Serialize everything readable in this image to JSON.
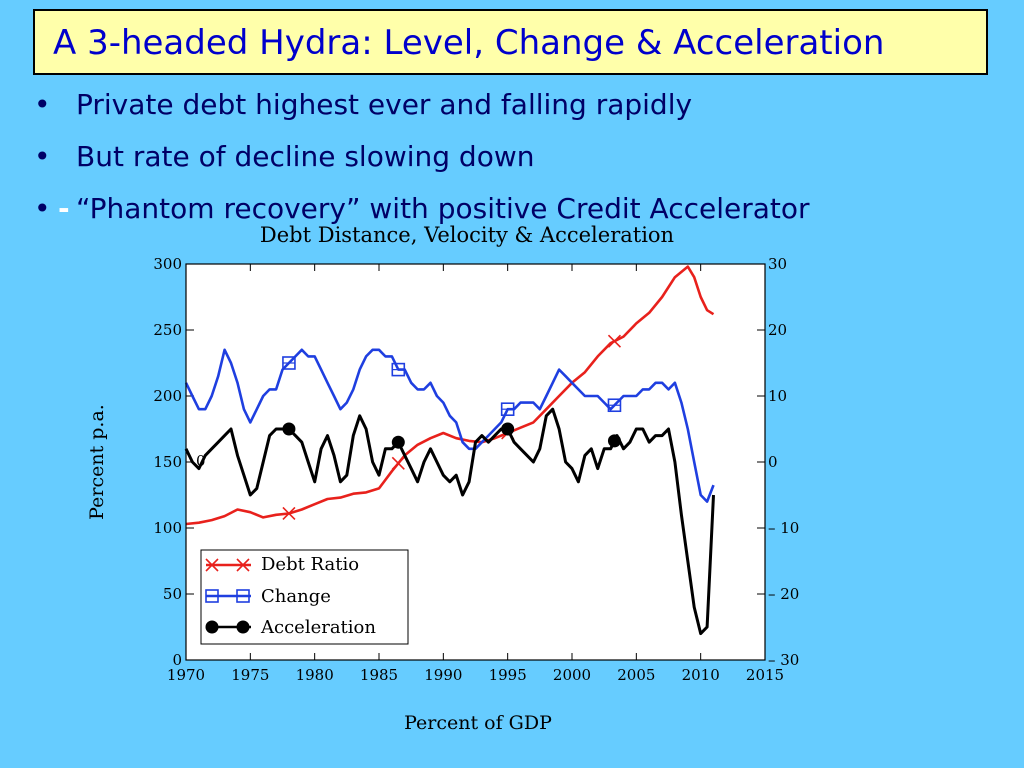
{
  "slide": {
    "title": "A 3-headed Hydra: Level, Change & Acceleration",
    "bullets": [
      "Private debt highest ever and falling rapidly",
      "But rate of decline slowing down",
      "“Phantom recovery” with positive Credit Accelerator"
    ],
    "bullet_marker": "•",
    "dash_marker": "-"
  },
  "colors": {
    "background": "#66ccff",
    "title_box": "#ffffaa",
    "title_text": "#0000cc",
    "debt_ratio": "#e8211c",
    "change": "#1f3fe0",
    "acceleration": "#000000"
  },
  "chart_data": {
    "type": "line",
    "title": "Debt Distance, Velocity & Acceleration",
    "xlabel": "Percent of GDP",
    "ylabel": "Percent p.a.",
    "xlim": [
      1970,
      2015
    ],
    "ylim_left": [
      0,
      300
    ],
    "ylim_right": [
      -30,
      30
    ],
    "x_ticks": [
      "1970",
      "1975",
      "1980",
      "1985",
      "1990",
      "1995",
      "2000",
      "2005",
      "2010",
      "2015"
    ],
    "y_left_ticks": [
      "0",
      "50",
      "100",
      "150",
      "200",
      "250",
      "300"
    ],
    "y_right_ticks": [
      "30",
      "20",
      "10",
      "0",
      "– 10",
      "– 20",
      "– 30"
    ],
    "annotations": [
      "0"
    ],
    "legend": {
      "placement": "bottom-left",
      "entries": [
        "Debt Ratio",
        "Change",
        "Acceleration"
      ]
    },
    "series": [
      {
        "name": "Debt Ratio",
        "axis": "left",
        "marker": "x",
        "color": "#e8211c",
        "x": [
          1970,
          1971,
          1972,
          1973,
          1974,
          1975,
          1976,
          1977,
          1978,
          1979,
          1980,
          1981,
          1982,
          1983,
          1984,
          1985,
          1986,
          1987,
          1988,
          1989,
          1990,
          1991,
          1992,
          1993,
          1994,
          1995,
          1996,
          1997,
          1998,
          1999,
          2000,
          2001,
          2002,
          2003,
          2004,
          2005,
          2006,
          2007,
          2008,
          2009,
          2009.5,
          2010,
          2010.5,
          2011
        ],
        "y": [
          103,
          104,
          106,
          109,
          114,
          112,
          108,
          110,
          111,
          114,
          118,
          122,
          123,
          126,
          127,
          130,
          143,
          155,
          163,
          168,
          172,
          168,
          166,
          165,
          168,
          172,
          176,
          180,
          190,
          200,
          210,
          218,
          230,
          240,
          245,
          255,
          263,
          275,
          290,
          298,
          290,
          275,
          265,
          262
        ],
        "markers_x": [
          1978,
          1986.5,
          1995,
          2003.3
        ]
      },
      {
        "name": "Change",
        "axis": "right",
        "marker": "square",
        "color": "#1f3fe0",
        "x": [
          1970,
          1970.5,
          1971,
          1971.5,
          1972,
          1972.5,
          1973,
          1973.5,
          1974,
          1974.5,
          1975,
          1975.5,
          1976,
          1976.5,
          1977,
          1977.5,
          1978,
          1978.5,
          1979,
          1979.5,
          1980,
          1980.5,
          1981,
          1981.5,
          1982,
          1982.5,
          1983,
          1983.5,
          1984,
          1984.5,
          1985,
          1985.5,
          1986,
          1986.5,
          1987,
          1987.5,
          1988,
          1988.5,
          1989,
          1989.5,
          1990,
          1990.5,
          1991,
          1991.5,
          1992,
          1992.5,
          1993,
          1993.5,
          1994,
          1994.5,
          1995,
          1995.5,
          1996,
          1996.5,
          1997,
          1997.5,
          1998,
          1998.5,
          1999,
          1999.5,
          2000,
          2000.5,
          2001,
          2001.5,
          2002,
          2002.5,
          2003,
          2003.5,
          2004,
          2004.5,
          2005,
          2005.5,
          2006,
          2006.5,
          2007,
          2007.5,
          2008,
          2008.5,
          2009,
          2009.5,
          2010,
          2010.5,
          2011
        ],
        "y": [
          12,
          10,
          8,
          8,
          10,
          13,
          17,
          15,
          12,
          8,
          6,
          8,
          10,
          11,
          11,
          14,
          15,
          16,
          17,
          16,
          16,
          14,
          12,
          10,
          8,
          9,
          11,
          14,
          16,
          17,
          17,
          16,
          16,
          14,
          14,
          12,
          11,
          11,
          12,
          10,
          9,
          7,
          6,
          3,
          2,
          2,
          3,
          4,
          5,
          6,
          8,
          8,
          9,
          9,
          9,
          8,
          10,
          12,
          14,
          13,
          12,
          11,
          10,
          10,
          10,
          9,
          8,
          9,
          10,
          10,
          10,
          11,
          11,
          12,
          12,
          11,
          12,
          9,
          5,
          0,
          -5,
          -6,
          -3.5
        ],
        "markers_x": [
          1978,
          1986.5,
          1995,
          2003.3
        ]
      },
      {
        "name": "Acceleration",
        "axis": "right",
        "marker": "circle",
        "color": "#000000",
        "x": [
          1970,
          1970.5,
          1971,
          1971.5,
          1972,
          1972.5,
          1973,
          1973.5,
          1974,
          1974.5,
          1975,
          1975.5,
          1976,
          1976.5,
          1977,
          1977.5,
          1978,
          1978.5,
          1979,
          1979.5,
          1980,
          1980.5,
          1981,
          1981.5,
          1982,
          1982.5,
          1983,
          1983.5,
          1984,
          1984.5,
          1985,
          1985.5,
          1986,
          1986.5,
          1987,
          1987.5,
          1988,
          1988.5,
          1989,
          1989.5,
          1990,
          1990.5,
          1991,
          1991.5,
          1992,
          1992.5,
          1993,
          1993.5,
          1994,
          1994.5,
          1995,
          1995.5,
          1996,
          1996.5,
          1997,
          1997.5,
          1998,
          1998.5,
          1999,
          1999.5,
          2000,
          2000.5,
          2001,
          2001.5,
          2002,
          2002.5,
          2003,
          2003.5,
          2004,
          2004.5,
          2005,
          2005.5,
          2006,
          2006.5,
          2007,
          2007.5,
          2008,
          2008.5,
          2009,
          2009.5,
          2010,
          2010.5,
          2011
        ],
        "y": [
          2,
          0,
          -1,
          1,
          2,
          3,
          4,
          5,
          1,
          -2,
          -5,
          -4,
          0,
          4,
          5,
          5,
          5,
          4,
          3,
          0,
          -3,
          2,
          4,
          1,
          -3,
          -2,
          4,
          7,
          5,
          0,
          -2,
          2,
          2,
          3,
          1,
          -1,
          -3,
          0,
          2,
          0,
          -2,
          -3,
          -2,
          -5,
          -3,
          3,
          4,
          3,
          4,
          5,
          5,
          3,
          2,
          1,
          0,
          2,
          7,
          8,
          5,
          0,
          -1,
          -3,
          1,
          2,
          -1,
          2,
          2,
          4,
          2,
          3,
          5,
          5,
          3,
          4,
          4,
          5,
          0,
          -8,
          -15,
          -22,
          -26,
          -25,
          -5
        ],
        "markers_x": [
          1978,
          1986.5,
          1995,
          2003.3
        ]
      }
    ]
  }
}
